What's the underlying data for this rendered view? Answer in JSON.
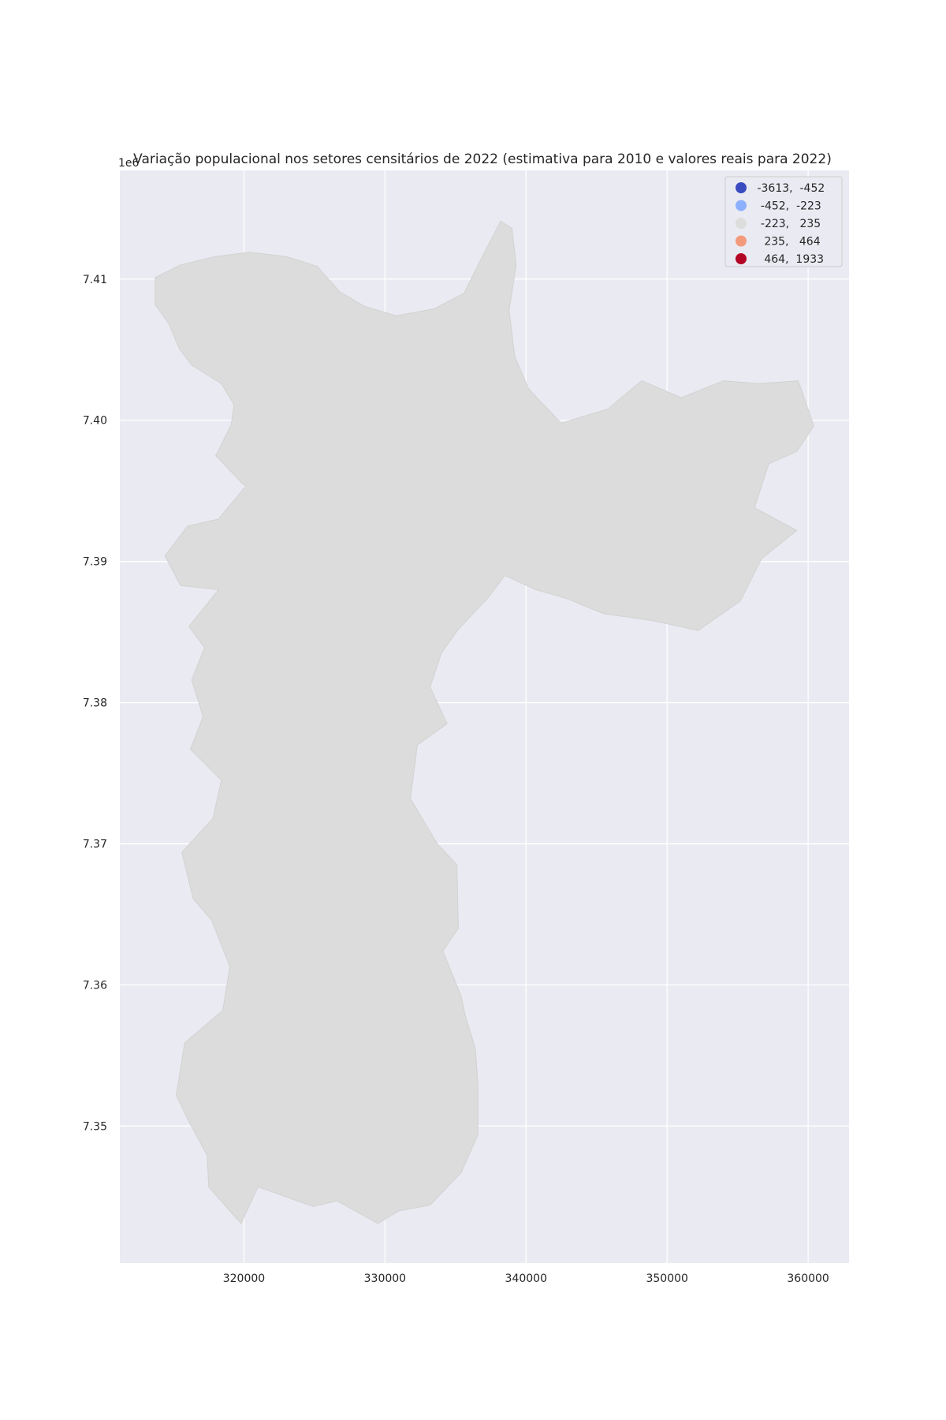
{
  "chart_data": {
    "type": "choropleth map",
    "title": "Variação populacional nos setores censitários de 2022 (estimativa para 2010 e valores reais para 2022)",
    "xlabel": "",
    "ylabel": "",
    "y_offset_label": "1e6",
    "x_ticks": [
      {
        "value": 320000,
        "label": "320000"
      },
      {
        "value": 330000,
        "label": "330000"
      },
      {
        "value": 340000,
        "label": "340000"
      },
      {
        "value": 350000,
        "label": "350000"
      },
      {
        "value": 360000,
        "label": "360000"
      }
    ],
    "y_ticks": [
      {
        "value": 7350000,
        "label": "7.35"
      },
      {
        "value": 7360000,
        "label": "7.36"
      },
      {
        "value": 7370000,
        "label": "7.37"
      },
      {
        "value": 7380000,
        "label": "7.38"
      },
      {
        "value": 7390000,
        "label": "7.39"
      },
      {
        "value": 7400000,
        "label": "7.40"
      },
      {
        "value": 7410000,
        "label": "7.41"
      }
    ],
    "xlim": [
      311200,
      362900
    ],
    "ylim": [
      7340300,
      7417700
    ],
    "grid": true,
    "legend_position": "top-right",
    "legend": [
      {
        "label": " -3613,  -452",
        "color": "#3b4cc0"
      },
      {
        "label": "  -452,  -223",
        "color": "#8db0fe"
      },
      {
        "label": "  -223,   235",
        "color": "#dddddd"
      },
      {
        "label": "   235,   464",
        "color": "#f39a7c"
      },
      {
        "label": "   464,  1933",
        "color": "#b40426"
      }
    ],
    "colors": {
      "background": "#eaeaf2",
      "grid": "#ffffff",
      "neutral_fill": "#dcdcdc"
    }
  }
}
